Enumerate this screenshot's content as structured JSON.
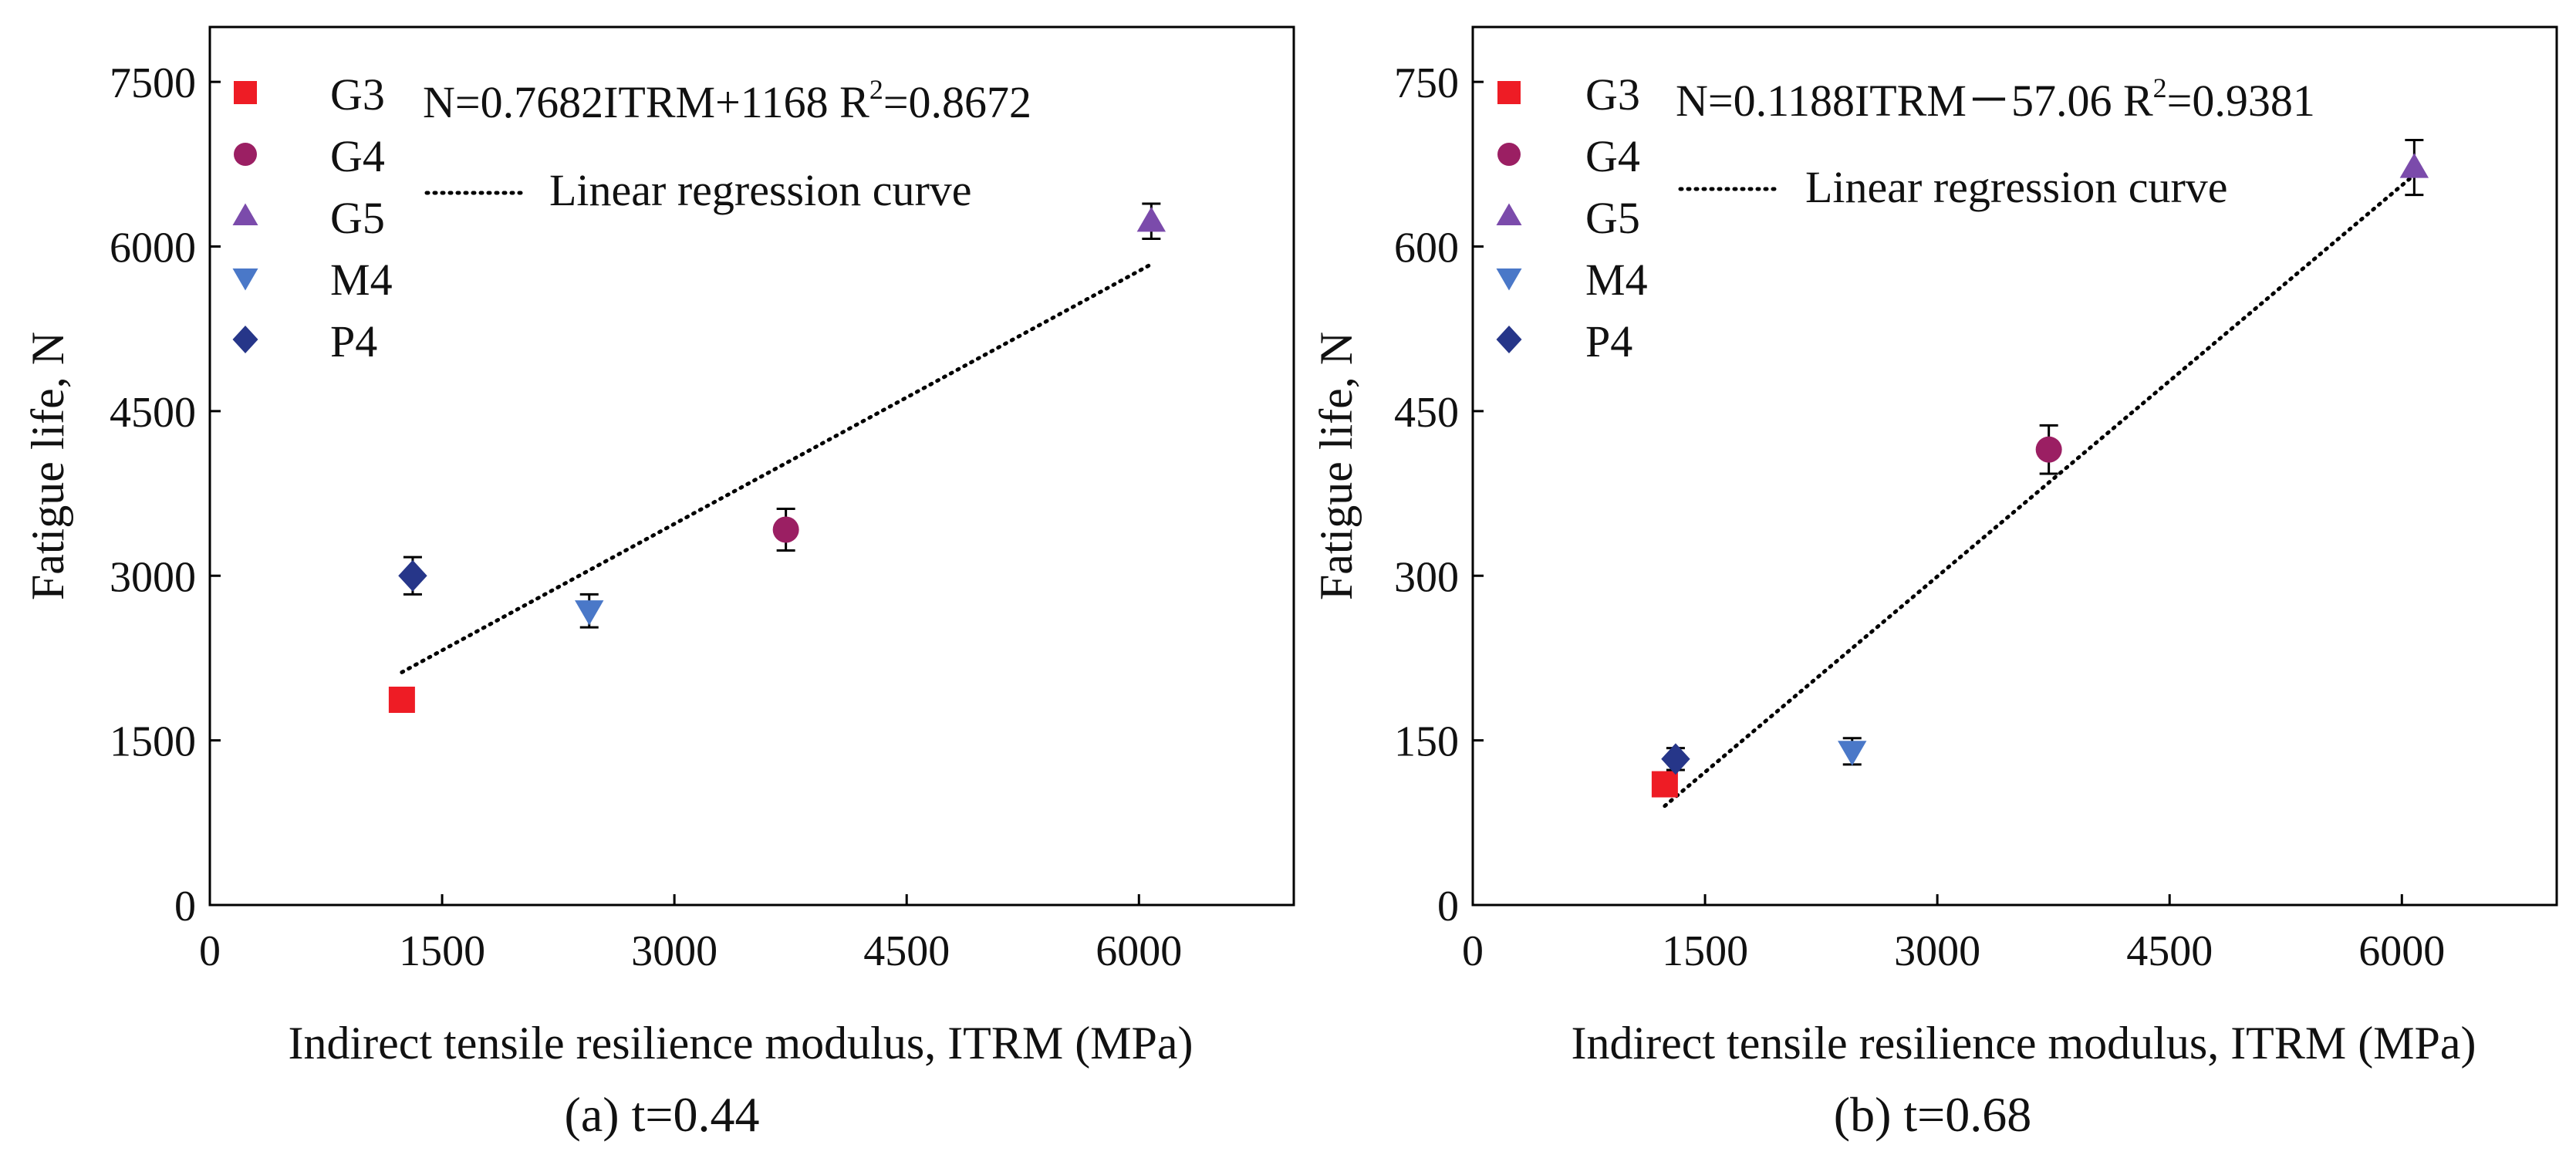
{
  "chart_data": [
    {
      "type": "scatter",
      "caption": "(a) t=0.44",
      "xlabel": "Indirect tensile resilience modulus, ITRM (MPa)",
      "ylabel": "Fatigue life, N",
      "xlim": [
        0,
        7000
      ],
      "ylim": [
        0,
        8000
      ],
      "xticks": [
        0,
        1500,
        3000,
        4500,
        6000
      ],
      "yticks": [
        0,
        1500,
        3000,
        4500,
        6000,
        7500
      ],
      "equation": {
        "prefix": "N=0.7682ITRM+1168  R",
        "sup": "2",
        "suffix": "=0.8672"
      },
      "regression": {
        "label": "Linear regression curve",
        "slope": 0.7682,
        "intercept": 1168,
        "x_range": [
          1240,
          6080
        ]
      },
      "series": [
        {
          "name": "G3",
          "marker": "square",
          "color": "#ee1c25",
          "x": 1240,
          "y": 1870,
          "err": 70
        },
        {
          "name": "G4",
          "marker": "circle",
          "color": "#9b1f63",
          "x": 3720,
          "y": 3420,
          "err": 190
        },
        {
          "name": "G5",
          "marker": "triangle-up",
          "color": "#7b4bab",
          "x": 6080,
          "y": 6230,
          "err": 160
        },
        {
          "name": "M4",
          "marker": "triangle-down",
          "color": "#4a78c8",
          "x": 2450,
          "y": 2680,
          "err": 150
        },
        {
          "name": "P4",
          "marker": "diamond",
          "color": "#263689",
          "x": 1310,
          "y": 3000,
          "err": 170
        }
      ]
    },
    {
      "type": "scatter",
      "caption": "(b) t=0.68",
      "xlabel": "Indirect tensile resilience modulus, ITRM (MPa)",
      "ylabel": "Fatigue life, N",
      "xlim": [
        0,
        7000
      ],
      "ylim": [
        0,
        800
      ],
      "xticks": [
        0,
        1500,
        3000,
        4500,
        6000
      ],
      "yticks": [
        0,
        150,
        300,
        450,
        600,
        750
      ],
      "equation": {
        "prefix": "N=0.1188ITRM－57.06  R",
        "sup": "2",
        "suffix": "=0.9381"
      },
      "regression": {
        "label": "Linear regression curve",
        "slope": 0.1188,
        "intercept": -57.06,
        "x_range": [
          1240,
          6080
        ]
      },
      "series": [
        {
          "name": "G3",
          "marker": "square",
          "color": "#ee1c25",
          "x": 1240,
          "y": 110,
          "err": 10
        },
        {
          "name": "G4",
          "marker": "circle",
          "color": "#9b1f63",
          "x": 3720,
          "y": 415,
          "err": 22
        },
        {
          "name": "G5",
          "marker": "triangle-up",
          "color": "#7b4bab",
          "x": 6080,
          "y": 672,
          "err": 25
        },
        {
          "name": "M4",
          "marker": "triangle-down",
          "color": "#4a78c8",
          "x": 2450,
          "y": 140,
          "err": 12
        },
        {
          "name": "P4",
          "marker": "diamond",
          "color": "#263689",
          "x": 1310,
          "y": 133,
          "err": 10
        }
      ]
    }
  ]
}
